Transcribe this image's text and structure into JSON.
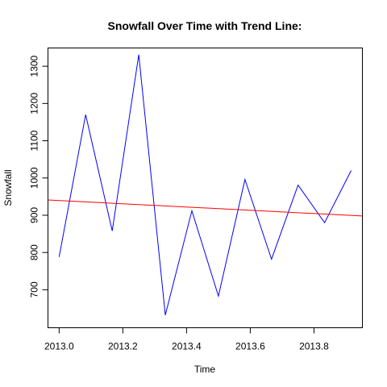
{
  "chart_data": {
    "type": "line",
    "title": "Snowfall Over Time with Trend Line:",
    "xlabel": "Time",
    "ylabel": "Snowfall",
    "xlim": [
      2012.965,
      2013.952
    ],
    "ylim": [
      598,
      1349
    ],
    "x_ticks": [
      2013.0,
      2013.2,
      2013.4,
      2013.6,
      2013.8
    ],
    "x_tick_labels": [
      "2013.0",
      "2013.2",
      "2013.4",
      "2013.6",
      "2013.8"
    ],
    "y_ticks": [
      700,
      800,
      900,
      1000,
      1100,
      1200,
      1300
    ],
    "y_tick_labels": [
      "700",
      "800",
      "900",
      "1000",
      "1100",
      "1200",
      "1300"
    ],
    "grid": false,
    "series": [
      {
        "color": "#0000ff",
        "x": [
          2013.0,
          2013.0833,
          2013.1667,
          2013.25,
          2013.3333,
          2013.4167,
          2013.5,
          2013.5833,
          2013.6667,
          2013.75,
          2013.8333,
          2013.9167
        ],
        "values": [
          788,
          1170,
          858,
          1331,
          632,
          912,
          683,
          996,
          782,
          981,
          880,
          1020
        ]
      },
      {
        "color": "#ff0000",
        "x": [
          2012.965,
          2013.952
        ],
        "values": [
          941,
          898
        ]
      }
    ]
  }
}
